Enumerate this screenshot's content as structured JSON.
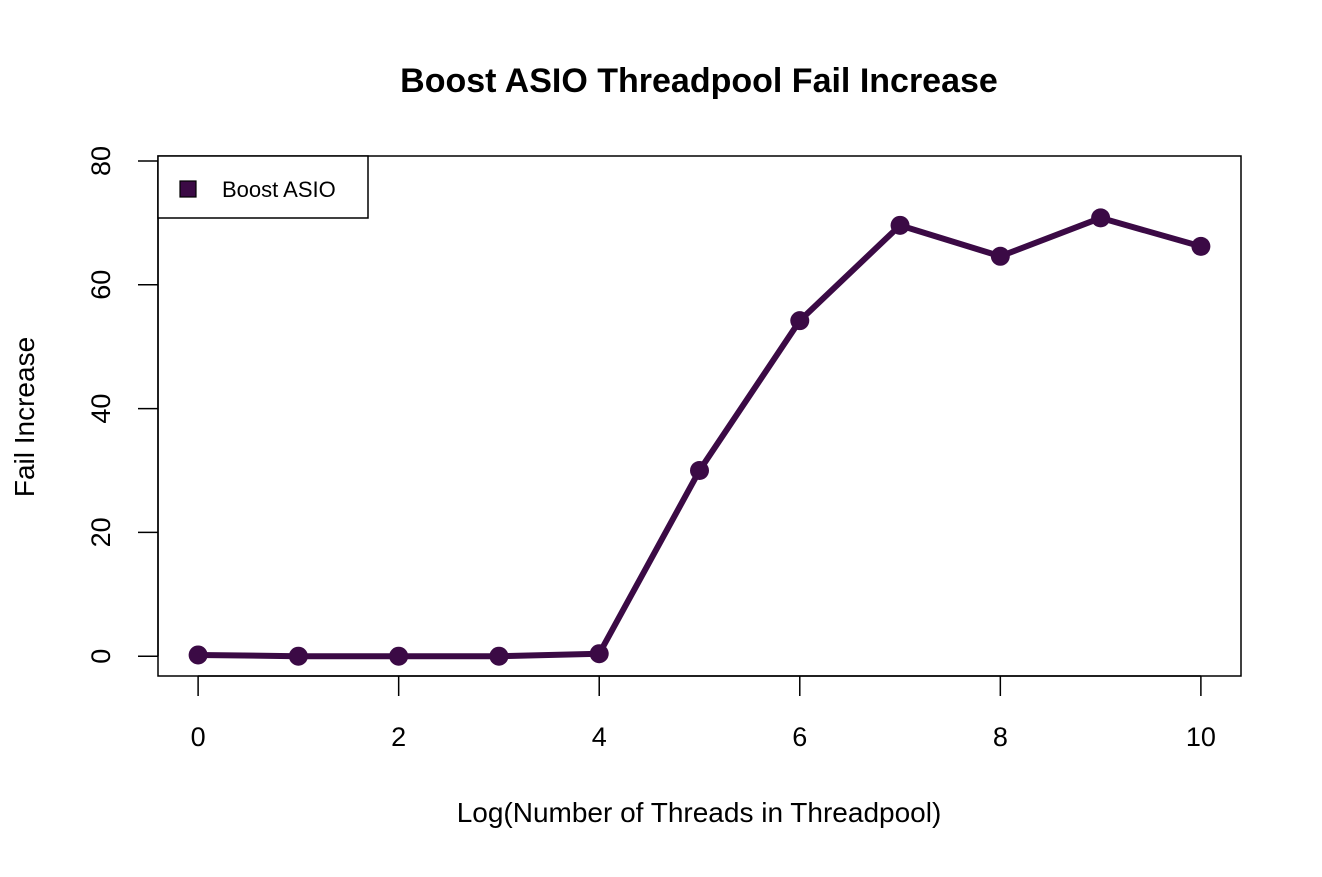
{
  "chart_data": {
    "type": "line",
    "title": "Boost ASIO Threadpool Fail Increase",
    "xlabel": "Log(Number of Threads in Threadpool)",
    "ylabel": "Fail Increase",
    "xlim": [
      -0.4,
      10.4
    ],
    "ylim": [
      -3.2,
      80.8
    ],
    "x_ticks": [
      0,
      2,
      4,
      6,
      8,
      10
    ],
    "y_ticks": [
      0,
      20,
      40,
      60,
      80
    ],
    "x_tick_labels": [
      "0",
      "2",
      "4",
      "6",
      "8",
      "10"
    ],
    "y_tick_labels": [
      "0",
      "20",
      "40",
      "60",
      "80"
    ],
    "grid": false,
    "legend": {
      "position": "top-left",
      "entries": [
        {
          "label": "Boost ASIO",
          "color": "#3b0a45"
        }
      ]
    },
    "series": [
      {
        "name": "Boost ASIO",
        "color": "#3b0a45",
        "x": [
          0,
          1,
          2,
          3,
          4,
          5,
          6,
          7,
          8,
          9,
          10
        ],
        "y": [
          0.2,
          0,
          0,
          0,
          0.4,
          30,
          54.2,
          69.6,
          64.6,
          70.8,
          66.2
        ]
      }
    ]
  }
}
